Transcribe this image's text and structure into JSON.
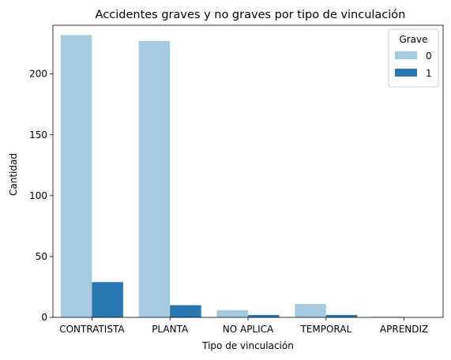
{
  "chart_data": {
    "type": "bar",
    "title": "Accidentes graves y no graves por tipo de vinculación",
    "xlabel": "Tipo de vinculación",
    "ylabel": "Cantidad",
    "categories": [
      "CONTRATISTA",
      "PLANTA",
      "NO APLICA",
      "TEMPORAL",
      "APRENDIZ"
    ],
    "series": [
      {
        "name": "0",
        "values": [
          232,
          227,
          6,
          11,
          0.5
        ],
        "color": "#a6cbe0"
      },
      {
        "name": "1",
        "values": [
          29,
          10,
          2,
          2,
          0
        ],
        "color": "#2a78b2"
      }
    ],
    "ylim": [
      0,
      240
    ],
    "yticks": [
      0,
      50,
      100,
      150,
      200
    ],
    "grid": false,
    "legend": {
      "title": "Grave",
      "placement": "top-right"
    }
  }
}
